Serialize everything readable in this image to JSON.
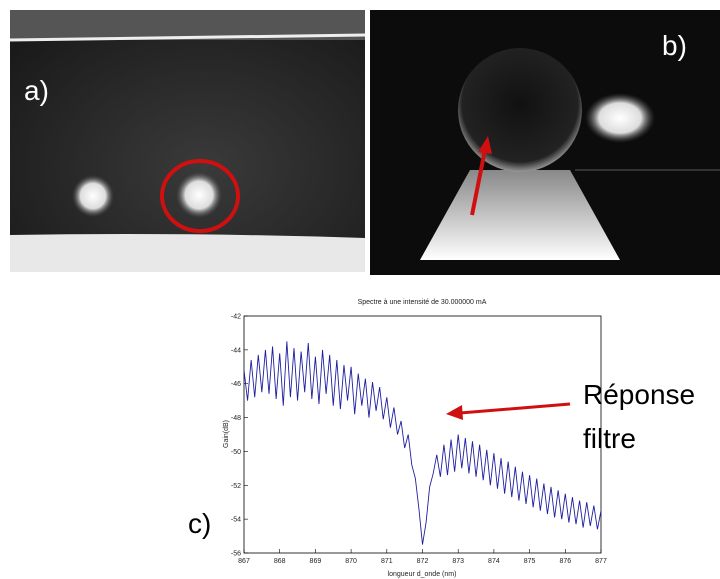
{
  "panels": [
    "a)",
    "b)",
    "c)"
  ],
  "chart_data": {
    "type": "line",
    "title": "Spectre à une intensité de 30.000000 mA",
    "xlabel": "longueur d_onde (nm)",
    "ylabel": "Gain(dB)",
    "annotation": [
      "Réponse",
      "filtre"
    ],
    "color": "#1f1fa0",
    "xlim": [
      867,
      877
    ],
    "xticks": [
      867,
      868,
      869,
      870,
      871,
      872,
      873,
      874,
      875,
      876,
      877
    ],
    "ylim": [
      -56,
      -42
    ],
    "yticks": [
      -56,
      -54,
      -52,
      -50,
      -48,
      -46,
      -44,
      -42
    ],
    "x": [
      867.0,
      867.1,
      867.2,
      867.3,
      867.4,
      867.5,
      867.6,
      867.7,
      867.8,
      867.9,
      868.0,
      868.1,
      868.2,
      868.3,
      868.4,
      868.5,
      868.6,
      868.7,
      868.8,
      868.9,
      869.0,
      869.1,
      869.2,
      869.3,
      869.4,
      869.5,
      869.6,
      869.7,
      869.8,
      869.9,
      870.0,
      870.1,
      870.2,
      870.3,
      870.4,
      870.5,
      870.6,
      870.7,
      870.8,
      870.9,
      871.0,
      871.1,
      871.2,
      871.3,
      871.4,
      871.5,
      871.6,
      871.7,
      871.8,
      871.9,
      872.0,
      872.1,
      872.2,
      872.3,
      872.4,
      872.5,
      872.6,
      872.7,
      872.8,
      872.9,
      873.0,
      873.1,
      873.2,
      873.3,
      873.4,
      873.5,
      873.6,
      873.7,
      873.8,
      873.9,
      874.0,
      874.1,
      874.2,
      874.3,
      874.4,
      874.5,
      874.6,
      874.7,
      874.8,
      874.9,
      875.0,
      875.1,
      875.2,
      875.3,
      875.4,
      875.5,
      875.6,
      875.7,
      875.8,
      875.9,
      876.0,
      876.1,
      876.2,
      876.3,
      876.4,
      876.5,
      876.6,
      876.7,
      876.8,
      876.9,
      877.0
    ],
    "values": [
      -45.2,
      -47.0,
      -44.6,
      -46.8,
      -44.3,
      -46.5,
      -44.0,
      -46.6,
      -43.8,
      -46.9,
      -44.2,
      -47.3,
      -43.5,
      -46.8,
      -43.9,
      -47.0,
      -44.1,
      -46.5,
      -43.6,
      -46.9,
      -44.4,
      -47.2,
      -44.0,
      -46.6,
      -44.3,
      -47.3,
      -44.6,
      -47.5,
      -44.9,
      -47.0,
      -45.0,
      -47.8,
      -45.4,
      -47.3,
      -45.7,
      -48.0,
      -45.9,
      -47.6,
      -46.2,
      -48.1,
      -46.8,
      -48.6,
      -47.4,
      -49.0,
      -48.2,
      -49.8,
      -49.0,
      -50.8,
      -51.6,
      -53.4,
      -55.5,
      -54.2,
      -52.1,
      -51.3,
      -50.2,
      -51.5,
      -49.6,
      -51.4,
      -49.3,
      -51.2,
      -49.0,
      -51.0,
      -49.2,
      -51.3,
      -49.4,
      -51.5,
      -49.6,
      -51.7,
      -49.9,
      -52.0,
      -50.1,
      -52.2,
      -50.4,
      -52.5,
      -50.6,
      -52.7,
      -50.9,
      -52.9,
      -51.2,
      -53.1,
      -51.4,
      -53.3,
      -51.6,
      -53.5,
      -51.9,
      -53.7,
      -52.1,
      -53.9,
      -52.3,
      -54.0,
      -52.5,
      -54.2,
      -52.7,
      -54.3,
      -52.9,
      -54.5,
      -53.0,
      -54.4,
      -53.2,
      -54.6,
      -53.5
    ]
  }
}
